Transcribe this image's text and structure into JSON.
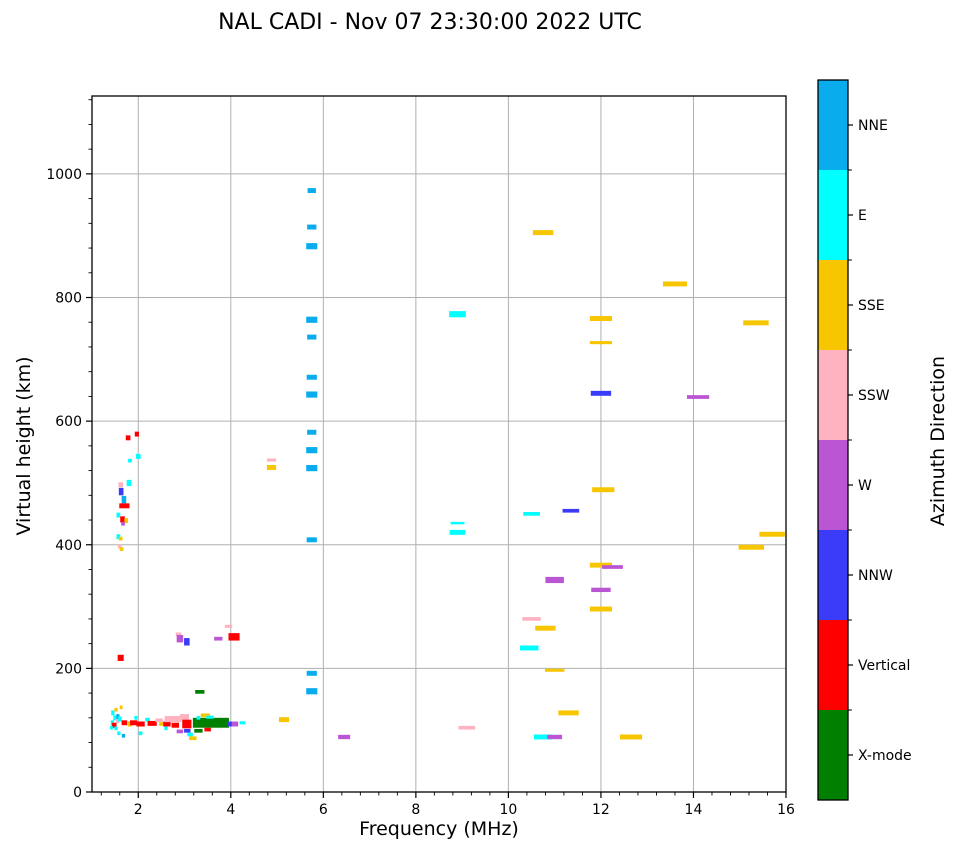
{
  "title": "NAL CADI - Nov 07 23:30:00 2022 UTC",
  "chart_data": {
    "type": "scatter",
    "title": "NAL CADI - Nov 07 23:30:00 2022 UTC",
    "xlabel": "Frequency (MHz)",
    "ylabel": "Virtual height (km)",
    "xlim": [
      1,
      16
    ],
    "ylim": [
      0,
      1126
    ],
    "xticks": [
      2,
      4,
      6,
      8,
      10,
      12,
      14,
      16
    ],
    "yticks": [
      0,
      200,
      400,
      600,
      800,
      1000
    ],
    "grid": true,
    "grid_color": "#b0b0b0",
    "background": "#ffffff",
    "legend": {
      "title": "Azimuth Direction",
      "position": "right-colorbar",
      "entries": [
        {
          "label": "NNE",
          "color": "#09ACEC"
        },
        {
          "label": "E",
          "color": "#00FFFF"
        },
        {
          "label": "SSE",
          "color": "#F7C600"
        },
        {
          "label": "SSW",
          "color": "#FFB3C1"
        },
        {
          "label": "W",
          "color": "#BA55D3"
        },
        {
          "label": "NNW",
          "color": "#3B3BFA"
        },
        {
          "label": "Vertical",
          "color": "#FF0000"
        },
        {
          "label": "X-mode",
          "color": "#007F00"
        }
      ]
    },
    "points_format": [
      "freq_mhz",
      "height_km",
      "width_mhz",
      "thickness_km",
      "direction"
    ],
    "points": [
      [
        5.75,
        973,
        0.18,
        8,
        "NNE"
      ],
      [
        5.75,
        914,
        0.2,
        8,
        "NNE"
      ],
      [
        5.75,
        883,
        0.24,
        10,
        "NNE"
      ],
      [
        5.75,
        764,
        0.24,
        10,
        "NNE"
      ],
      [
        5.75,
        736,
        0.2,
        8,
        "NNE"
      ],
      [
        5.75,
        671,
        0.22,
        8,
        "NNE"
      ],
      [
        5.75,
        643,
        0.24,
        10,
        "NNE"
      ],
      [
        5.75,
        582,
        0.2,
        8,
        "NNE"
      ],
      [
        5.75,
        553,
        0.24,
        10,
        "NNE"
      ],
      [
        5.75,
        524,
        0.24,
        10,
        "NNE"
      ],
      [
        5.75,
        408,
        0.22,
        8,
        "NNE"
      ],
      [
        5.75,
        192,
        0.22,
        8,
        "NNE"
      ],
      [
        5.75,
        163,
        0.24,
        10,
        "NNE"
      ],
      [
        8.9,
        773,
        0.36,
        10,
        "E"
      ],
      [
        8.9,
        435,
        0.3,
        4,
        "E"
      ],
      [
        8.9,
        420,
        0.34,
        8,
        "E"
      ],
      [
        10.5,
        450,
        0.36,
        6,
        "E"
      ],
      [
        10.45,
        233,
        0.4,
        8,
        "E"
      ],
      [
        10.75,
        89,
        0.4,
        8,
        "E"
      ],
      [
        10.75,
        905,
        0.44,
        8,
        "SSE"
      ],
      [
        13.6,
        822,
        0.52,
        8,
        "SSE"
      ],
      [
        12.0,
        766,
        0.48,
        8,
        "SSE"
      ],
      [
        15.35,
        759,
        0.55,
        8,
        "SSE"
      ],
      [
        12.0,
        727,
        0.48,
        5,
        "SSE"
      ],
      [
        12.05,
        489,
        0.48,
        8,
        "SSE"
      ],
      [
        15.7,
        417,
        0.55,
        8,
        "SSE"
      ],
      [
        15.25,
        396,
        0.55,
        8,
        "SSE"
      ],
      [
        12.0,
        367,
        0.48,
        8,
        "SSE"
      ],
      [
        12.0,
        296,
        0.48,
        8,
        "SSE"
      ],
      [
        10.8,
        265,
        0.44,
        8,
        "SSE"
      ],
      [
        11.0,
        197,
        0.42,
        5,
        "SSE"
      ],
      [
        11.3,
        128,
        0.44,
        8,
        "SSE"
      ],
      [
        12.65,
        89,
        0.48,
        8,
        "SSE"
      ],
      [
        5.15,
        117,
        0.22,
        8,
        "SSE"
      ],
      [
        4.88,
        525,
        0.2,
        8,
        "SSE"
      ],
      [
        10.5,
        280,
        0.4,
        6,
        "SSW"
      ],
      [
        9.1,
        104,
        0.36,
        6,
        "SSW"
      ],
      [
        4.88,
        537,
        0.2,
        5,
        "SSW"
      ],
      [
        3.95,
        268,
        0.16,
        5,
        "SSW"
      ],
      [
        2.87,
        255,
        0.12,
        6,
        "SSW"
      ],
      [
        14.1,
        639,
        0.48,
        6,
        "W"
      ],
      [
        12.25,
        364,
        0.45,
        6,
        "W"
      ],
      [
        12.0,
        327,
        0.42,
        7,
        "W"
      ],
      [
        11.0,
        343,
        0.4,
        10,
        "W"
      ],
      [
        11.0,
        89,
        0.32,
        7,
        "W"
      ],
      [
        6.45,
        89,
        0.26,
        7,
        "W"
      ],
      [
        3.73,
        248,
        0.18,
        6,
        "W"
      ],
      [
        2.9,
        248,
        0.14,
        12,
        "W"
      ],
      [
        4.07,
        110,
        0.18,
        8,
        "W"
      ],
      [
        12.0,
        645,
        0.44,
        8,
        "NNW"
      ],
      [
        11.35,
        455,
        0.36,
        6,
        "NNW"
      ],
      [
        3.05,
        243,
        0.12,
        12,
        "NNW"
      ],
      [
        4.07,
        251,
        0.24,
        12,
        "Vertical"
      ],
      [
        1.78,
        573,
        0.1,
        8,
        "Vertical"
      ],
      [
        1.97,
        579,
        0.09,
        8,
        "Vertical"
      ],
      [
        1.62,
        217,
        0.13,
        10,
        "Vertical"
      ],
      [
        3.33,
        162,
        0.2,
        6,
        "X-mode"
      ],
      [
        2.0,
        543,
        0.1,
        8,
        "E"
      ],
      [
        1.82,
        536,
        0.08,
        6,
        "E"
      ],
      [
        1.8,
        500,
        0.1,
        10,
        "E"
      ],
      [
        1.62,
        497,
        0.1,
        8,
        "SSW"
      ],
      [
        1.63,
        486,
        0.1,
        12,
        "NNW"
      ],
      [
        1.69,
        473,
        0.1,
        12,
        "NNE"
      ],
      [
        1.7,
        463,
        0.22,
        8,
        "Vertical"
      ],
      [
        1.57,
        448,
        0.08,
        8,
        "E"
      ],
      [
        1.66,
        441,
        0.1,
        10,
        "Vertical"
      ],
      [
        1.74,
        439,
        0.08,
        8,
        "SSE"
      ],
      [
        1.67,
        434,
        0.08,
        6,
        "W"
      ],
      [
        1.57,
        413,
        0.08,
        8,
        "E"
      ],
      [
        1.62,
        410,
        0.08,
        6,
        "SSE"
      ],
      [
        1.6,
        397,
        0.08,
        6,
        "SSW"
      ],
      [
        1.64,
        393,
        0.08,
        6,
        "SSE"
      ],
      [
        1.45,
        128,
        0.07,
        8,
        "E"
      ],
      [
        1.52,
        133,
        0.07,
        6,
        "SSE"
      ],
      [
        1.5,
        120,
        0.08,
        8,
        "E"
      ],
      [
        1.44,
        112,
        0.07,
        8,
        "E"
      ],
      [
        1.55,
        115,
        0.08,
        8,
        "SSW"
      ],
      [
        1.48,
        108,
        0.1,
        8,
        "Vertical"
      ],
      [
        1.56,
        122,
        0.07,
        8,
        "NNE"
      ],
      [
        1.6,
        118,
        0.08,
        8,
        "E"
      ],
      [
        1.52,
        103,
        0.07,
        6,
        "E"
      ],
      [
        1.58,
        95,
        0.07,
        6,
        "E"
      ],
      [
        1.68,
        91,
        0.07,
        6,
        "NNE"
      ],
      [
        1.63,
        137,
        0.06,
        6,
        "SSE"
      ],
      [
        1.42,
        104,
        0.06,
        6,
        "E"
      ],
      [
        1.7,
        112,
        0.12,
        8,
        "Vertical"
      ],
      [
        1.82,
        110,
        0.1,
        8,
        "SSE"
      ],
      [
        1.9,
        112,
        0.16,
        8,
        "Vertical"
      ],
      [
        1.95,
        120,
        0.07,
        6,
        "E"
      ],
      [
        2.05,
        110,
        0.18,
        8,
        "Vertical"
      ],
      [
        2.05,
        95,
        0.08,
        6,
        "E"
      ],
      [
        2.2,
        117,
        0.1,
        6,
        "E"
      ],
      [
        2.3,
        111,
        0.2,
        8,
        "Vertical"
      ],
      [
        2.45,
        116,
        0.16,
        6,
        "SSW"
      ],
      [
        2.5,
        110,
        0.1,
        6,
        "SSE"
      ],
      [
        2.62,
        110,
        0.16,
        8,
        "Vertical"
      ],
      [
        2.6,
        103,
        0.07,
        6,
        "E"
      ],
      [
        2.75,
        118,
        0.36,
        10,
        "SSW"
      ],
      [
        2.8,
        108,
        0.16,
        8,
        "Vertical"
      ],
      [
        3.0,
        121,
        0.2,
        10,
        "SSW"
      ],
      [
        3.05,
        110,
        0.2,
        14,
        "Vertical"
      ],
      [
        2.9,
        98,
        0.14,
        6,
        "W"
      ],
      [
        3.06,
        99,
        0.14,
        6,
        "NNW"
      ],
      [
        3.12,
        93,
        0.12,
        6,
        "E"
      ],
      [
        3.18,
        87,
        0.16,
        6,
        "SSE"
      ],
      [
        3.57,
        112,
        0.78,
        16,
        "X-mode"
      ],
      [
        3.45,
        124,
        0.2,
        6,
        "SSE"
      ],
      [
        3.55,
        121,
        0.16,
        5,
        "E"
      ],
      [
        3.3,
        120,
        0.08,
        6,
        "E"
      ],
      [
        3.97,
        110,
        0.1,
        8,
        "NNW"
      ],
      [
        3.5,
        101,
        0.14,
        6,
        "Vertical"
      ],
      [
        3.3,
        99,
        0.18,
        6,
        "X-mode"
      ],
      [
        4.25,
        112,
        0.12,
        5,
        "E"
      ]
    ]
  }
}
